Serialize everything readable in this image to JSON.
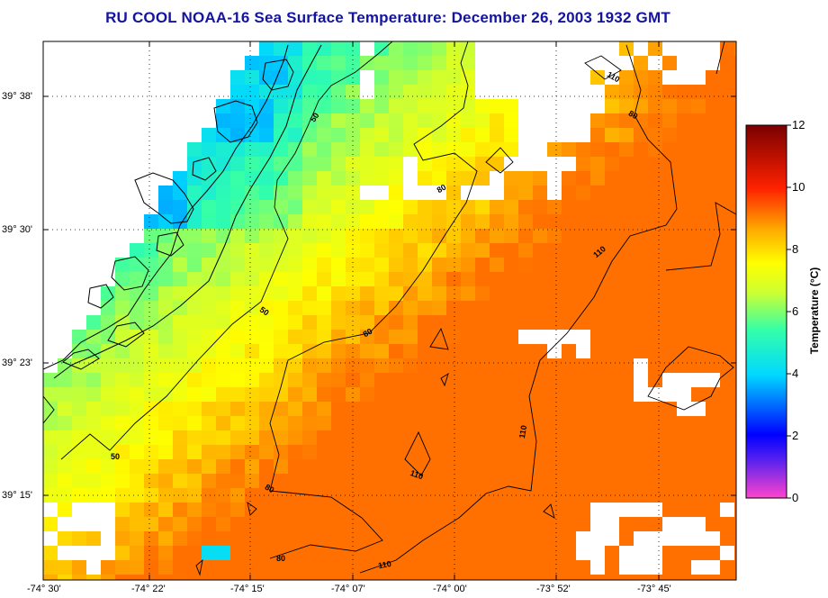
{
  "title": "RU COOL  NOAA-16  Sea Surface Temperature:  December 26, 2003 1932 GMT",
  "axes": {
    "lat_ticks": [
      "39° 38'",
      "39° 30'",
      "39° 23'",
      "39° 15'"
    ],
    "lon_ticks": [
      "-74° 30'",
      "-74° 22'",
      "-74° 15'",
      "-74° 07'",
      "-74° 00'",
      "-73° 52'",
      "-73° 45'"
    ]
  },
  "colorbar": {
    "label": "Temperature (°C)",
    "ticks": [
      "12",
      "10",
      "8",
      "6",
      "4",
      "2",
      "0"
    ],
    "range": [
      0,
      12
    ],
    "colors": [
      "#ff44cc",
      "#0000ff",
      "#00c8ff",
      "#33ffaa",
      "#ccff33",
      "#ffff00",
      "#ffaa00",
      "#ff2200",
      "#cc0000",
      "#7a0000"
    ]
  },
  "bathymetry_contours": {
    "labels": [
      "50",
      "50",
      "50",
      "80",
      "80",
      "80",
      "80",
      "110",
      "110",
      "110",
      "110",
      "80",
      "110"
    ],
    "depths": [
      50,
      80,
      110
    ]
  },
  "colors": {
    "title": "#1414a0",
    "land_coast": "#000000",
    "no_data": "#ffffff"
  }
}
